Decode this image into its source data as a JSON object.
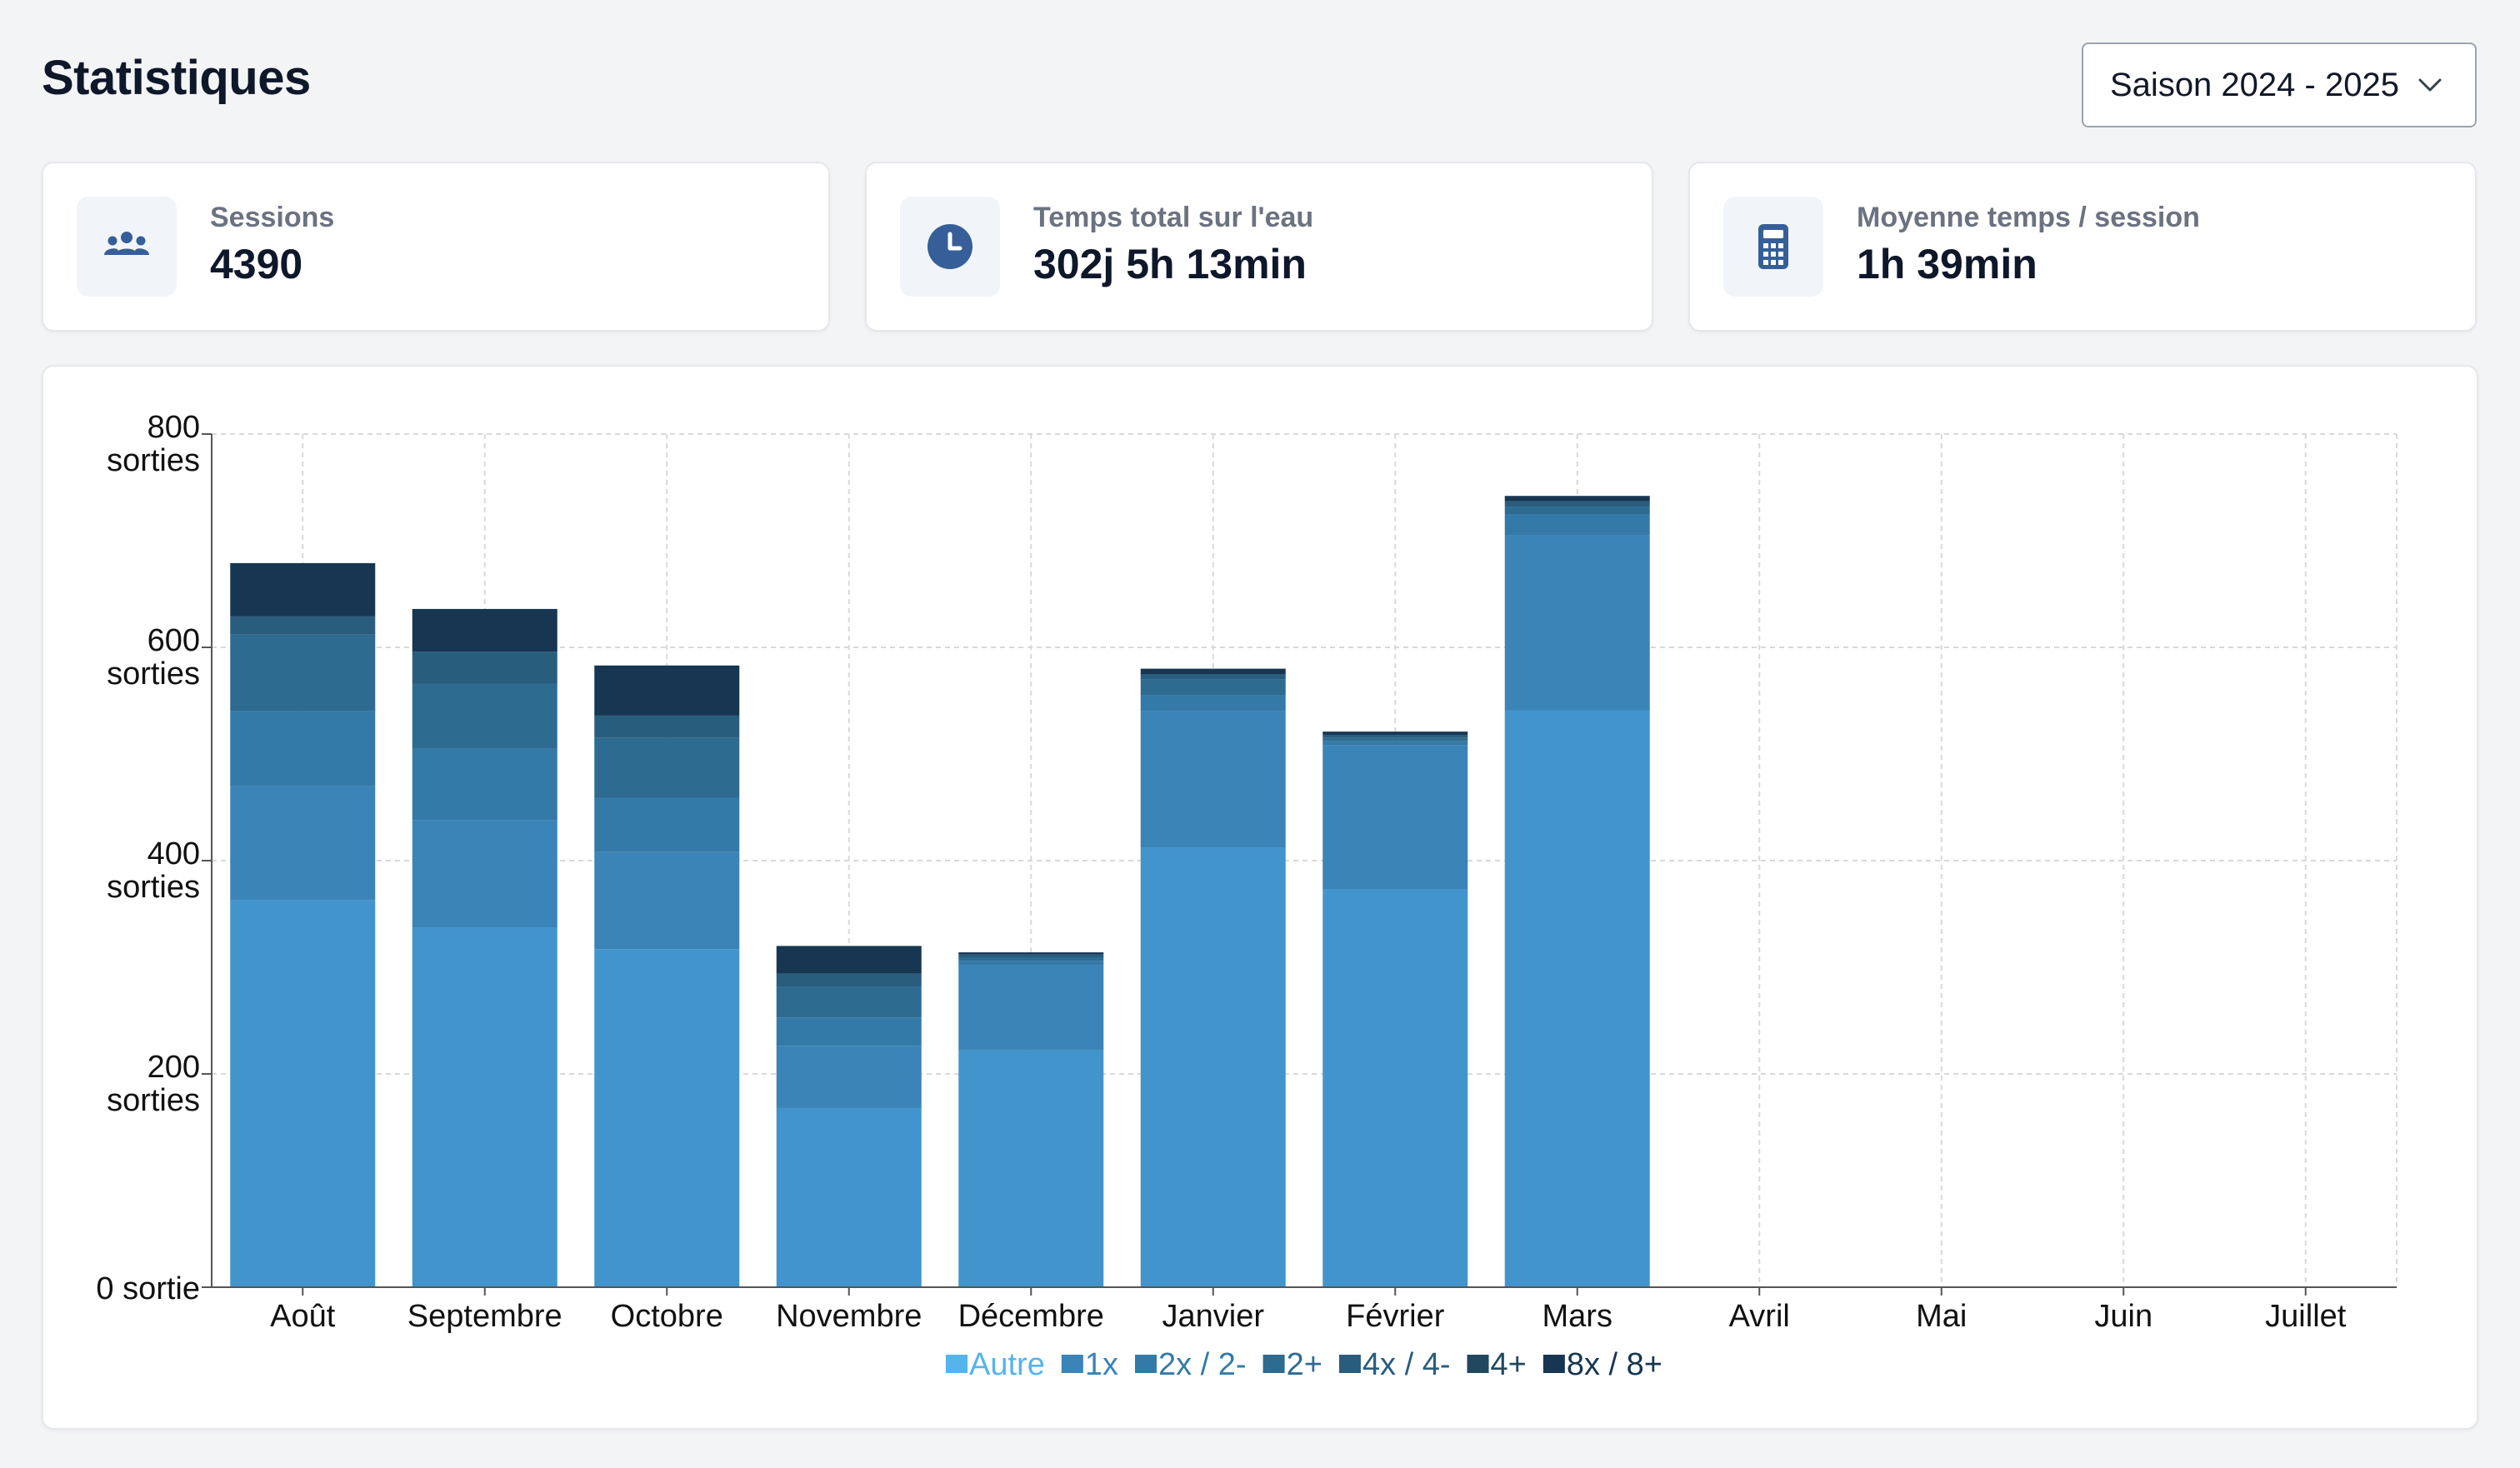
{
  "page": {
    "title": "Statistiques",
    "season_select": {
      "value": "Saison 2024 - 2025",
      "icon": "chevron-down-icon"
    }
  },
  "stats": [
    {
      "label": "Sessions",
      "value": "4390",
      "icon": "users-icon"
    },
    {
      "label": "Temps total sur l'eau",
      "value": "302j 5h 13min",
      "icon": "clock-icon"
    },
    {
      "label": "Moyenne temps / session",
      "value": "1h 39min",
      "icon": "calculator-icon"
    }
  ],
  "colors": {
    "accent": "#365f99",
    "series": [
      "#4295cc",
      "#3a84b8",
      "#347aa8",
      "#2e6b91",
      "#295d7e",
      "#22485d",
      "#173651"
    ],
    "legend_autre": "#55b4ec"
  },
  "chart_data": {
    "type": "bar",
    "stacked": true,
    "categories": [
      "Août",
      "Septembre",
      "Octobre",
      "Novembre",
      "Décembre",
      "Janvier",
      "Février",
      "Mars",
      "Avril",
      "Mai",
      "Juin",
      "Juillet"
    ],
    "y_ticks": [
      {
        "value": 0,
        "number": "0",
        "unit": "sortie"
      },
      {
        "value": 200,
        "number": "200",
        "unit": "sorties"
      },
      {
        "value": 400,
        "number": "400",
        "unit": "sorties"
      },
      {
        "value": 600,
        "number": "600",
        "unit": "sorties"
      },
      {
        "value": 800,
        "number": "800",
        "unit": "sorties"
      }
    ],
    "ylim": [
      0,
      800
    ],
    "grid": true,
    "legend_position": "bottom",
    "series": [
      {
        "name": "Autre",
        "values": [
          363,
          337,
          317,
          168,
          222,
          412,
          373,
          541,
          0,
          0,
          0,
          0
        ]
      },
      {
        "name": "1x",
        "values": [
          107,
          101,
          91,
          58,
          80,
          128,
          135,
          164,
          0,
          0,
          0,
          0
        ]
      },
      {
        "name": "2x / 2-",
        "values": [
          70,
          67,
          51,
          27,
          4,
          15,
          4,
          20,
          0,
          0,
          0,
          0
        ]
      },
      {
        "name": "2+",
        "values": [
          72,
          61,
          56,
          29,
          3,
          15,
          3,
          7,
          0,
          0,
          0,
          0
        ]
      },
      {
        "name": "4x / 4-",
        "values": [
          17,
          30,
          21,
          12,
          3,
          5,
          3,
          5,
          0,
          0,
          0,
          0
        ]
      },
      {
        "name": "4+",
        "values": 0
      },
      {
        "name": "8x / 8+",
        "values": [
          50,
          40,
          47,
          26,
          2,
          5,
          3,
          5,
          0,
          0,
          0,
          0
        ]
      }
    ]
  }
}
